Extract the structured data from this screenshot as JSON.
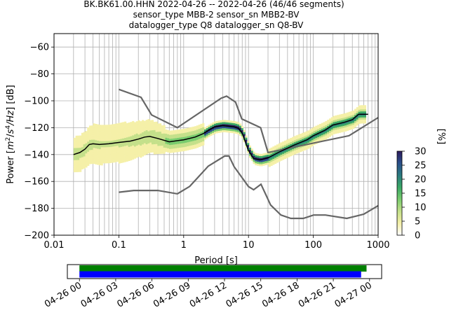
{
  "chart_data": {
    "type": "ppsd",
    "title_lines": [
      "BK.BK61.00.HHN   2022-04-26 -- 2022-04-26  (46/46 segments)",
      "sensor_type MBB-2 sensor_sn MBB2-BV",
      "datalogger_type Q8 datalogger_sn Q8-BV"
    ],
    "xlabel": "Period [s]",
    "ylabel_parts": [
      "Power [",
      "m",
      "2",
      "/",
      "s",
      "4",
      "/Hz",
      "] [dB]"
    ],
    "xscale": "log",
    "xlim": [
      0.01,
      1000
    ],
    "ylim": [
      -200,
      -50
    ],
    "x_ticks": [
      {
        "v": 0.01,
        "label": "0.01"
      },
      {
        "v": 0.1,
        "label": "0.1"
      },
      {
        "v": 1,
        "label": "1"
      },
      {
        "v": 10,
        "label": "10"
      },
      {
        "v": 100,
        "label": "100"
      },
      {
        "v": 1000,
        "label": "1000"
      }
    ],
    "y_ticks": [
      -60,
      -80,
      -100,
      -120,
      -140,
      -160,
      -180,
      -200
    ],
    "grid": true,
    "colors": {
      "noise_model": "#666666",
      "mean": "#000000",
      "coverage_top": "#008000",
      "coverage_bottom": "#0000ff"
    },
    "colorbar": {
      "label": "[%]",
      "range": [
        0,
        30
      ],
      "ticks": [
        0,
        5,
        10,
        15,
        20,
        25,
        30
      ],
      "colors": [
        "#ffffff",
        "#f5f0a8",
        "#c4e08a",
        "#79cc6e",
        "#3aa866",
        "#2b7b80",
        "#2a4f8a",
        "#2c1c5e"
      ]
    },
    "series": [
      {
        "role": "nhnm",
        "x": [
          0.1,
          0.22,
          0.32,
          0.8,
          3.8,
          4.6,
          6.3,
          7.9,
          15.4,
          20,
          354.8,
          1000
        ],
        "y": [
          -91.5,
          -97.4,
          -110.5,
          -120,
          -98,
          -96.5,
          -101,
          -113.5,
          -120,
          -138.5,
          -126,
          -112.5
        ]
      },
      {
        "role": "nlnm",
        "x": [
          0.1,
          0.17,
          0.4,
          0.8,
          1.24,
          2.4,
          4.3,
          5,
          6,
          10,
          12,
          15.6,
          21.9,
          31.6,
          45,
          70,
          101,
          154,
          328,
          600,
          1000
        ],
        "y": [
          -168,
          -166.7,
          -166.7,
          -169.2,
          -163.7,
          -148.6,
          -141.1,
          -141.1,
          -149,
          -163.8,
          -166.2,
          -162.1,
          -177.5,
          -185,
          -187.5,
          -187.5,
          -185,
          -185,
          -187.5,
          -184.4,
          -178
        ]
      },
      {
        "role": "mean",
        "x": [
          0.02,
          0.025,
          0.03,
          0.035,
          0.04,
          0.05,
          0.07,
          0.1,
          0.15,
          0.2,
          0.25,
          0.3,
          0.4,
          0.6,
          1,
          1.5,
          2,
          2.5,
          3,
          4,
          5,
          6,
          7,
          8,
          9,
          10,
          12,
          15,
          20,
          30,
          50,
          80,
          100,
          150,
          200,
          300,
          400,
          500,
          700
        ],
        "y": [
          -140,
          -138.5,
          -136,
          -132.5,
          -132,
          -132.5,
          -132,
          -131,
          -130,
          -128.5,
          -127,
          -126.5,
          -128,
          -130.5,
          -129,
          -127,
          -124.5,
          -121.5,
          -119.5,
          -118.5,
          -119,
          -119.5,
          -120.5,
          -124,
          -131,
          -137,
          -143,
          -144,
          -142.5,
          -138,
          -133,
          -129,
          -126,
          -122,
          -118,
          -116,
          -114,
          -110,
          -110
        ]
      }
    ],
    "coverage": {
      "axis_ticks": [
        "04-26 00",
        "04-26 03",
        "04-26 06",
        "04-26 09",
        "04-26 12",
        "04-26 15",
        "04-26 18",
        "04-26 21",
        "04-27 00"
      ],
      "range_hours": [
        -1,
        25
      ],
      "bars": [
        {
          "role": "top",
          "start_h": 0,
          "end_h": 23.75
        },
        {
          "role": "bottom",
          "start_h": 0,
          "end_h": 23.3
        }
      ]
    }
  }
}
